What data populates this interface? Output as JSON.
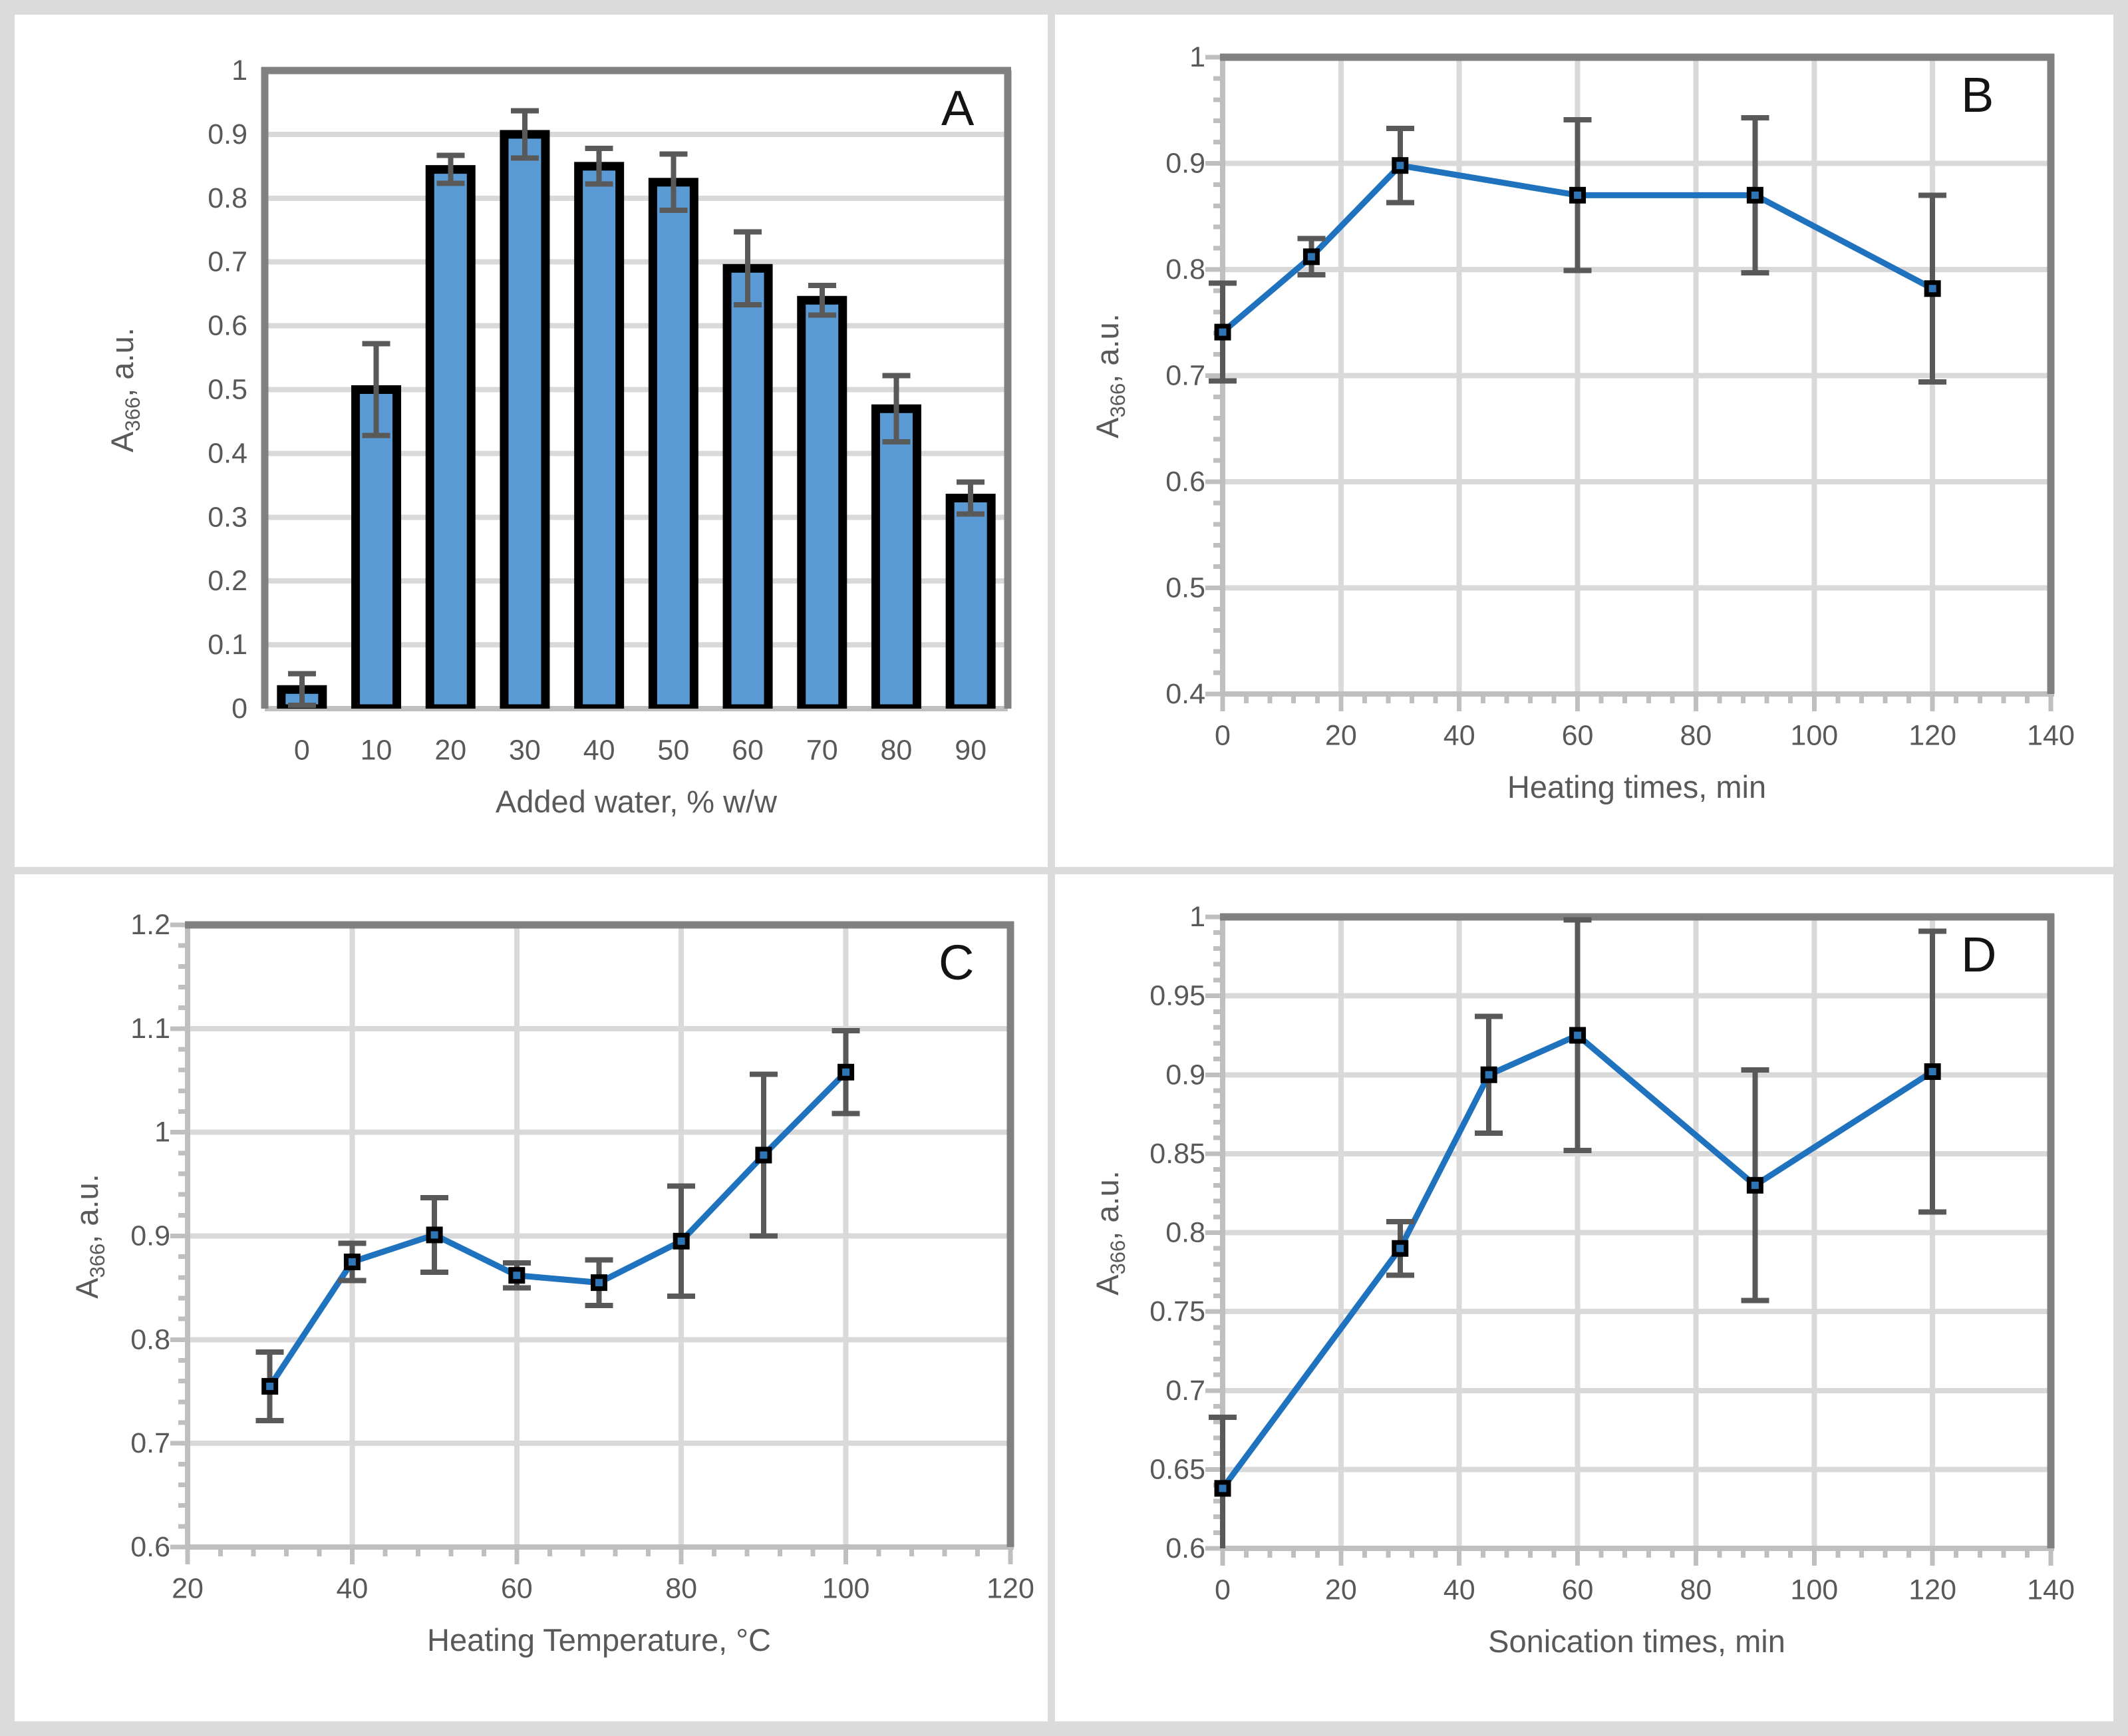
{
  "colors": {
    "figure_background": "#DBDBDB",
    "panel_background": "#FFFFFF",
    "bar_fill": "#5B9BD5",
    "bar_stroke": "#000000",
    "line": "#1F73BE",
    "marker_fill": "#2E75B6",
    "marker_stroke": "#000000",
    "error_bar": "#595959",
    "gridline": "#D9D9D9",
    "axis_dark": "#808080",
    "axis_light": "#BFBFBF",
    "tick_text": "#595959",
    "panel_letter": "#141414"
  },
  "chart_data": [
    {
      "panel_label": "A",
      "type": "bar",
      "xlabel": "Added water, % w/w",
      "ylabel": {
        "prefix": "A",
        "sub": "366",
        "suffix": ", a.u."
      },
      "categories": [
        0,
        10,
        20,
        30,
        40,
        50,
        60,
        70,
        80,
        90
      ],
      "values": [
        0.03,
        0.5,
        0.845,
        0.9,
        0.85,
        0.825,
        0.69,
        0.64,
        0.47,
        0.33
      ],
      "errors": [
        0.025,
        0.072,
        0.022,
        0.037,
        0.028,
        0.044,
        0.057,
        0.023,
        0.052,
        0.025
      ],
      "xticks": [
        "0",
        "10",
        "20",
        "30",
        "40",
        "50",
        "60",
        "70",
        "80",
        "90"
      ],
      "yticks": [
        "0",
        "0.1",
        "0.2",
        "0.3",
        "0.4",
        "0.5",
        "0.6",
        "0.7",
        "0.8",
        "0.9",
        "1"
      ],
      "ylim": [
        0,
        1
      ],
      "ystep": 0.1,
      "grid": "horizontal",
      "legend": "none"
    },
    {
      "panel_label": "B",
      "type": "line",
      "xlabel": "Heating times, min",
      "ylabel": {
        "prefix": "A",
        "sub": "366",
        "suffix": ", a.u."
      },
      "x": [
        0,
        15,
        30,
        60,
        90,
        120
      ],
      "y": [
        0.741,
        0.812,
        0.898,
        0.87,
        0.87,
        0.782
      ],
      "errors": [
        0.046,
        0.017,
        0.035,
        0.071,
        0.073,
        0.088
      ],
      "xlim": [
        0,
        140
      ],
      "xstep": 20,
      "x_minor": 4,
      "ylim": [
        0.4,
        1.0
      ],
      "ystep": 0.1,
      "y_minor": 0.02,
      "xticks": [
        "0",
        "20",
        "40",
        "60",
        "80",
        "100",
        "120",
        "140"
      ],
      "yticks": [
        "0.4",
        "0.5",
        "0.6",
        "0.7",
        "0.8",
        "0.9",
        "1"
      ],
      "grid": "both",
      "legend": "none"
    },
    {
      "panel_label": "C",
      "type": "line",
      "xlabel": "Heating Temperature, °C",
      "ylabel": {
        "prefix": "A",
        "sub": "366",
        "suffix": ", a.u."
      },
      "x": [
        30,
        40,
        50,
        60,
        70,
        80,
        90,
        100
      ],
      "y": [
        0.755,
        0.875,
        0.901,
        0.862,
        0.855,
        0.895,
        0.978,
        1.058
      ],
      "errors": [
        0.033,
        0.018,
        0.036,
        0.012,
        0.022,
        0.053,
        0.078,
        0.04
      ],
      "xlim": [
        20,
        120
      ],
      "xstep": 20,
      "x_minor": 4,
      "ylim": [
        0.6,
        1.2
      ],
      "ystep": 0.1,
      "y_minor": 0.02,
      "xticks": [
        "20",
        "40",
        "60",
        "80",
        "100",
        "120"
      ],
      "yticks": [
        "0.6",
        "0.7",
        "0.8",
        "0.9",
        "1",
        "1.1",
        "1.2"
      ],
      "grid": "both",
      "legend": "none"
    },
    {
      "panel_label": "D",
      "type": "line",
      "xlabel": "Sonication times, min",
      "ylabel": {
        "prefix": "A",
        "sub": "366",
        "suffix": ", a.u."
      },
      "x": [
        0,
        30,
        45,
        60,
        90,
        120
      ],
      "y": [
        0.638,
        0.79,
        0.9,
        0.925,
        0.83,
        0.902
      ],
      "errors": [
        0.045,
        0.017,
        0.037,
        0.073,
        0.073,
        0.089
      ],
      "xlim": [
        0,
        140
      ],
      "xstep": 20,
      "x_minor": 4,
      "ylim": [
        0.6,
        1.0
      ],
      "ystep": 0.05,
      "y_minor": 0.01,
      "xticks": [
        "0",
        "20",
        "40",
        "60",
        "80",
        "100",
        "120",
        "140"
      ],
      "yticks": [
        "0.6",
        "0.65",
        "0.7",
        "0.75",
        "0.8",
        "0.85",
        "0.9",
        "0.95",
        "1"
      ],
      "grid": "both",
      "legend": "none"
    }
  ]
}
